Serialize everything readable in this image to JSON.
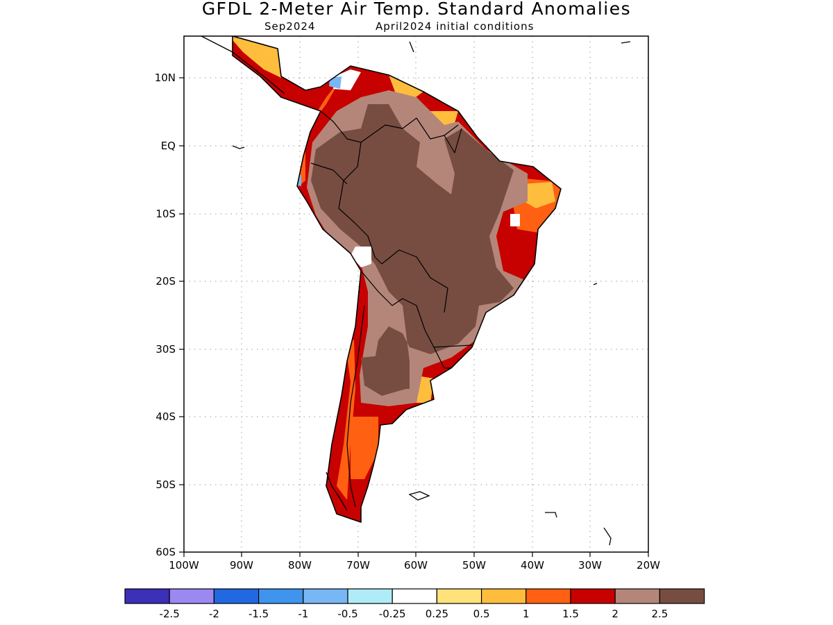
{
  "header": {
    "title": "GFDL 2-Meter Air Temp. Standard Anomalies",
    "subtitle_left": "Sep2024",
    "subtitle_right": "April2024 initial conditions"
  },
  "map": {
    "lat_labels": [
      "10N",
      "EQ",
      "10S",
      "20S",
      "30S",
      "40S",
      "50S",
      "60S"
    ],
    "lon_labels": [
      "100W",
      "90W",
      "80W",
      "70W",
      "60W",
      "50W",
      "40W",
      "30W",
      "20W"
    ]
  },
  "colorbar": {
    "colors": [
      "#3c2fb8",
      "#9c88f2",
      "#2268e0",
      "#3f94ee",
      "#78b7f6",
      "#b0ecf8",
      "#ffffff",
      "#ffe27a",
      "#ffbd3d",
      "#ff6012",
      "#c70000",
      "#b4867a",
      "#774d41"
    ],
    "labels": [
      "-2.5",
      "-2",
      "-1.5",
      "-1",
      "-0.5",
      "-0.25",
      "0.25",
      "0.5",
      "1",
      "1.5",
      "2",
      "2.5"
    ]
  }
}
